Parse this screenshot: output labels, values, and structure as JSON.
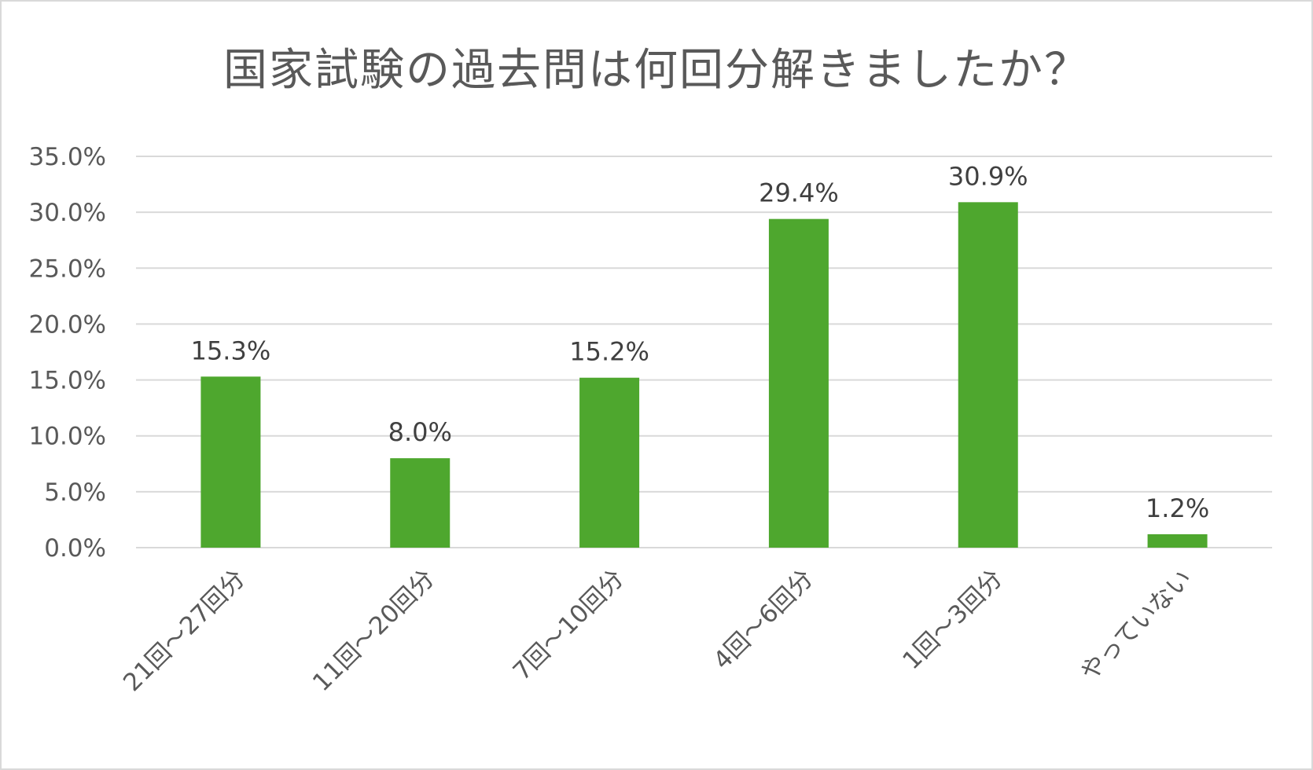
{
  "chart_data": {
    "type": "bar",
    "title": "国家試験の過去問は何回分解きましたか？",
    "categories": [
      "21回～27回分",
      "11回～20回分",
      "7回～10回分",
      "4回～6回分",
      "1回～3回分",
      "やっていない"
    ],
    "values": [
      15.3,
      8.0,
      15.2,
      29.4,
      30.9,
      1.2
    ],
    "data_labels": [
      "15.3%",
      "8.0%",
      "15.2%",
      "29.4%",
      "30.9%",
      "1.2%"
    ],
    "yticks": [
      "0.0%",
      "5.0%",
      "10.0%",
      "15.0%",
      "20.0%",
      "25.0%",
      "30.0%",
      "35.0%"
    ],
    "ylim": [
      0,
      35
    ],
    "ystep": 5,
    "xlabel": "",
    "ylabel": "",
    "grid": true,
    "legend": "none",
    "colors": {
      "bar": "#4ea72e",
      "grid": "#d9d9d9",
      "text": "#595959"
    }
  }
}
